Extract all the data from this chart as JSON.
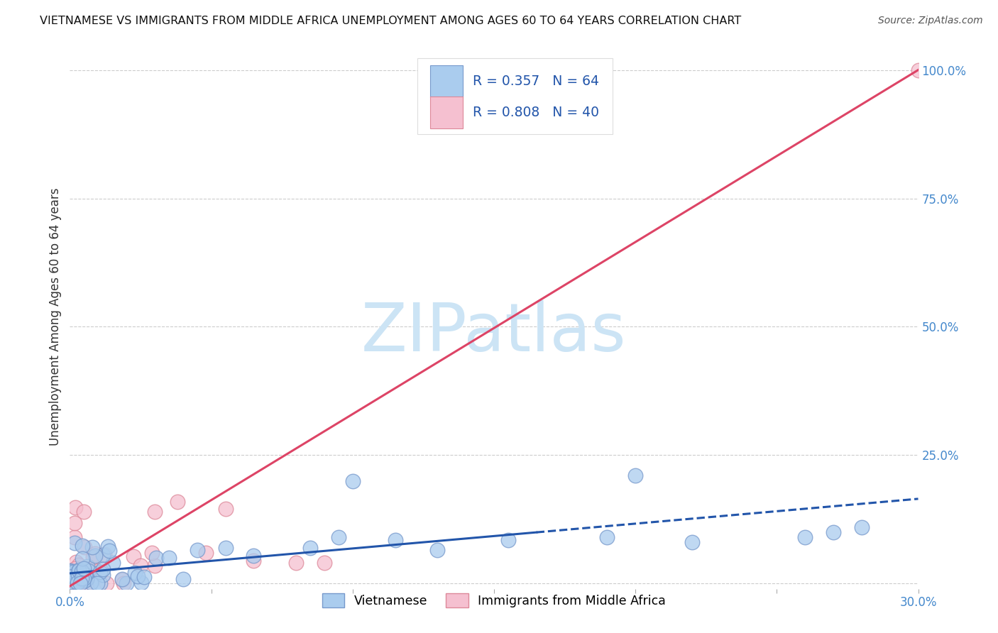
{
  "title": "VIETNAMESE VS IMMIGRANTS FROM MIDDLE AFRICA UNEMPLOYMENT AMONG AGES 60 TO 64 YEARS CORRELATION CHART",
  "source": "Source: ZipAtlas.com",
  "ylabel": "Unemployment Among Ages 60 to 64 years",
  "xlim": [
    0.0,
    0.3
  ],
  "ylim": [
    -0.01,
    1.05
  ],
  "xtick_positions": [
    0.0,
    0.05,
    0.1,
    0.15,
    0.2,
    0.25,
    0.3
  ],
  "xticklabels": [
    "0.0%",
    "",
    "",
    "",
    "",
    "",
    "30.0%"
  ],
  "ytick_right_positions": [
    0.25,
    0.5,
    0.75,
    1.0
  ],
  "ytick_right_labels": [
    "25.0%",
    "50.0%",
    "75.0%",
    "100.0%"
  ],
  "watermark": "ZIPatlas",
  "watermark_color": "#cce4f5",
  "background_color": "#ffffff",
  "grid_color": "#cccccc",
  "viet_color": "#aaccee",
  "viet_edge_color": "#7799cc",
  "africa_color": "#f5c0d0",
  "africa_edge_color": "#dd8899",
  "viet_line_color": "#2255aa",
  "africa_line_color": "#dd4466",
  "viet_R": 0.357,
  "viet_N": 64,
  "africa_R": 0.808,
  "africa_N": 40,
  "legend_label_viet": "Vietnamese",
  "legend_label_africa": "Immigrants from Middle Africa",
  "viet_line_x0": 0.0,
  "viet_line_y0": 0.02,
  "viet_line_x1": 0.3,
  "viet_line_y1": 0.165,
  "viet_line_solid_end": 0.165,
  "africa_line_x0": 0.0,
  "africa_line_y0": -0.005,
  "africa_line_x1": 0.3,
  "africa_line_y1": 1.0,
  "title_fontsize": 11.5,
  "axis_label_color": "#333333",
  "tick_color": "#4488cc"
}
